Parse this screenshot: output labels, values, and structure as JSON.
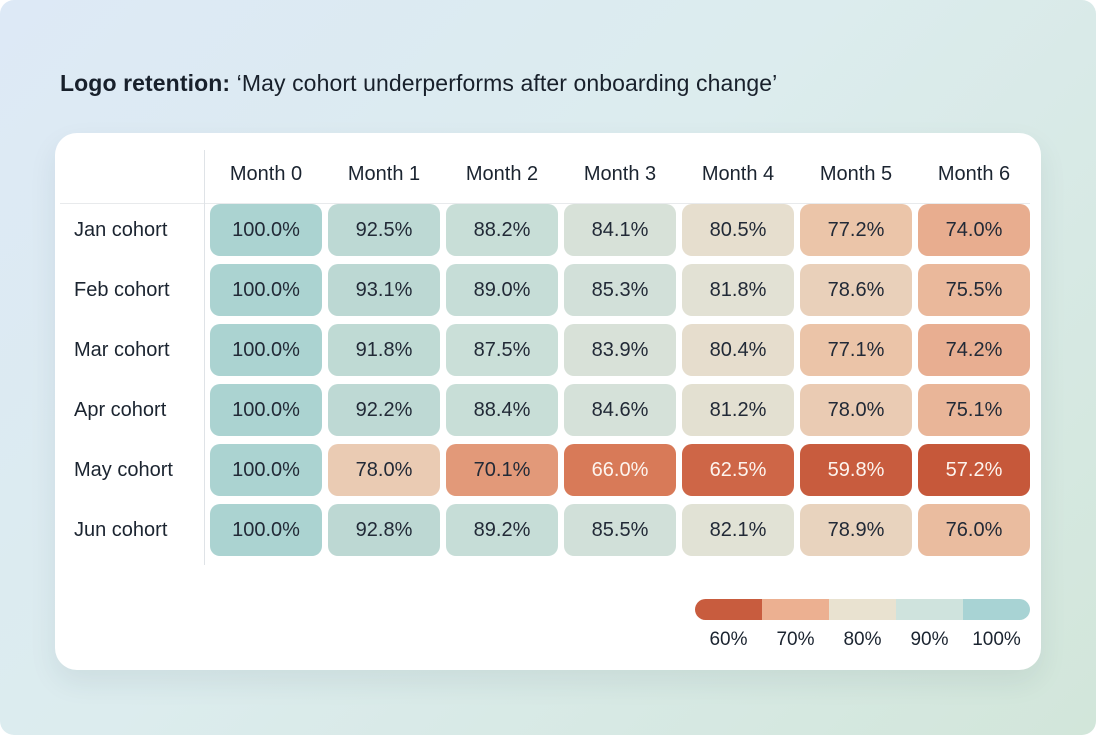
{
  "title": {
    "prefix": "Logo retention:",
    "rest": " ‘May cohort underperforms after onboarding change’"
  },
  "chart_data": {
    "type": "heatmap",
    "title": "Logo retention: ‘May cohort underperforms after onboarding change’",
    "columns": [
      "Month 0",
      "Month 1",
      "Month 2",
      "Month 3",
      "Month 4",
      "Month 5",
      "Month 6"
    ],
    "rows": [
      "Jan cohort",
      "Feb cohort",
      "Mar cohort",
      "Apr cohort",
      "May cohort",
      "Jun cohort"
    ],
    "values": [
      [
        100.0,
        92.5,
        88.2,
        84.1,
        80.5,
        77.2,
        74.0
      ],
      [
        100.0,
        93.1,
        89.0,
        85.3,
        81.8,
        78.6,
        75.5
      ],
      [
        100.0,
        91.8,
        87.5,
        83.9,
        80.4,
        77.1,
        74.2
      ],
      [
        100.0,
        92.2,
        88.4,
        84.6,
        81.2,
        78.0,
        75.1
      ],
      [
        100.0,
        78.0,
        70.1,
        66.0,
        62.5,
        59.8,
        57.2
      ],
      [
        100.0,
        92.8,
        89.2,
        85.5,
        82.1,
        78.9,
        76.0
      ]
    ],
    "value_suffix": "%",
    "value_decimals": 1,
    "value_range": [
      60,
      100
    ],
    "grid": false,
    "legend_position": "bottom-right",
    "color_scale": {
      "white_text_below": 68,
      "stops": [
        {
          "value": 57,
          "color": "#c6583a"
        },
        {
          "value": 61,
          "color": "#c95e40"
        },
        {
          "value": 66,
          "color": "#d87a58"
        },
        {
          "value": 70,
          "color": "#e29878"
        },
        {
          "value": 74,
          "color": "#e8ad8f"
        },
        {
          "value": 77,
          "color": "#ebc3a7"
        },
        {
          "value": 80,
          "color": "#e7dccb"
        },
        {
          "value": 82,
          "color": "#e1e2d5"
        },
        {
          "value": 84.5,
          "color": "#d5e1d9"
        },
        {
          "value": 87,
          "color": "#cbdfd8"
        },
        {
          "value": 90,
          "color": "#c4dcd6"
        },
        {
          "value": 93,
          "color": "#bcd8d3"
        },
        {
          "value": 100,
          "color": "#abd3d1"
        }
      ]
    },
    "legend": {
      "labels": [
        "60%",
        "70%",
        "80%",
        "90%",
        "100%"
      ],
      "segment_colors": [
        "#c85c3e",
        "#ecb091",
        "#e9e2d0",
        "#cfe3dd",
        "#a8d3d4"
      ]
    }
  }
}
